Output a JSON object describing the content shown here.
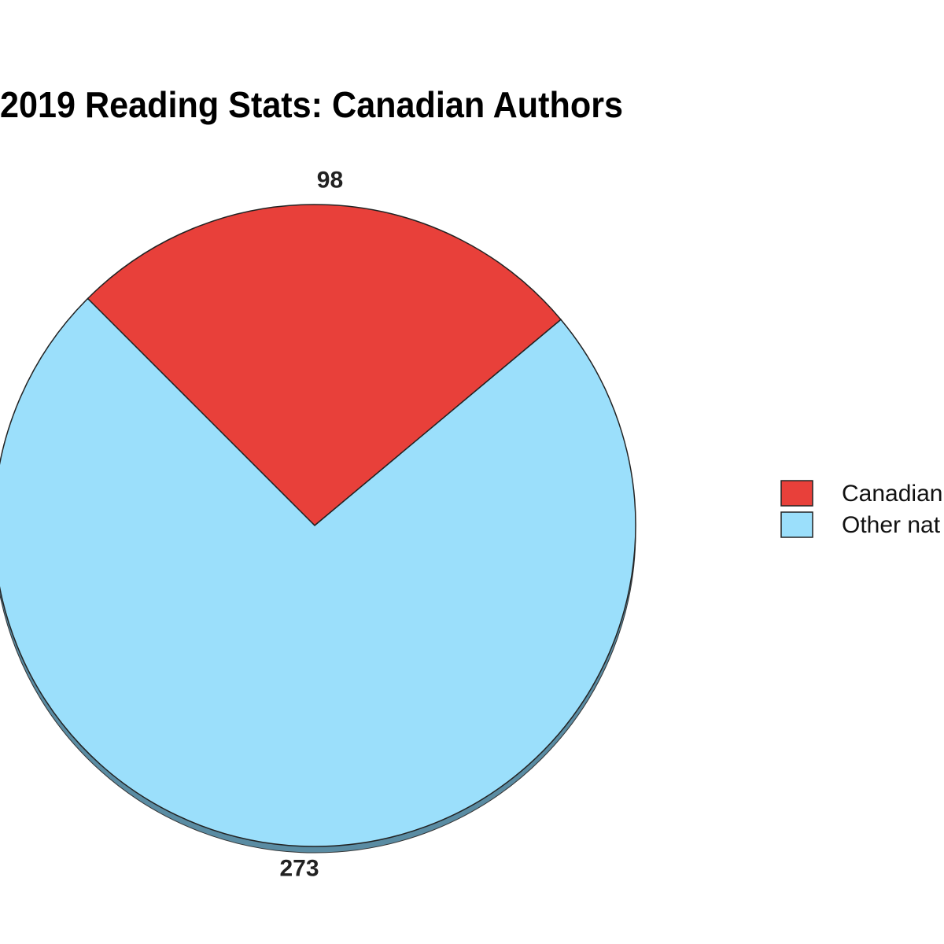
{
  "chart_data": {
    "type": "pie",
    "title": "2019 Reading Stats: Canadian Authors",
    "categories": [
      "Canadian",
      "Other nat"
    ],
    "values": [
      98,
      273
    ],
    "colors": [
      "#e8403a",
      "#9bdffb"
    ]
  }
}
